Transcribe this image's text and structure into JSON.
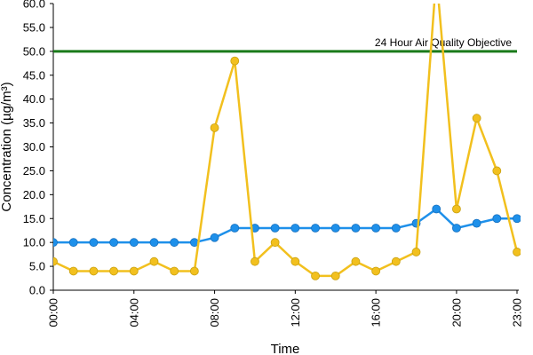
{
  "chart_data": {
    "type": "line",
    "title": "",
    "xlabel": "Time",
    "ylabel": "Concentration (µg/m³)",
    "ylim": [
      0,
      60
    ],
    "y_tick_step": 5,
    "x_hours": [
      0,
      1,
      2,
      3,
      4,
      5,
      6,
      7,
      8,
      9,
      10,
      11,
      12,
      13,
      14,
      15,
      16,
      17,
      18,
      19,
      20,
      21,
      22,
      23
    ],
    "x_tick_hours": [
      0,
      4,
      8,
      12,
      16,
      20,
      23
    ],
    "x_tick_labels": [
      "00:00",
      "04:00",
      "08:00",
      "12:00",
      "16:00",
      "20:00",
      "23:00"
    ],
    "y_tick_labels": [
      "0.0",
      "5.0",
      "10.0",
      "15.0",
      "20.0",
      "25.0",
      "30.0",
      "35.0",
      "40.0",
      "45.0",
      "50.0",
      "55.0",
      "60.0"
    ],
    "grid": false,
    "legend": "none",
    "series": [
      {
        "color": "#1e90ea",
        "values": [
          10,
          10,
          10,
          10,
          10,
          10,
          10,
          10,
          11,
          13,
          13,
          13,
          13,
          13,
          13,
          13,
          13,
          13,
          14,
          17,
          13,
          14,
          15,
          15
        ]
      },
      {
        "color": "#f2c01e",
        "values": [
          6,
          4,
          4,
          4,
          4,
          6,
          4,
          4,
          34,
          48,
          6,
          10,
          6,
          3,
          3,
          6,
          4,
          6,
          8,
          66,
          17,
          36,
          25,
          8
        ]
      }
    ],
    "reference_line": {
      "value": 50,
      "label": "24 Hour Air Quality Objective",
      "color": "#1a7a1a"
    }
  }
}
